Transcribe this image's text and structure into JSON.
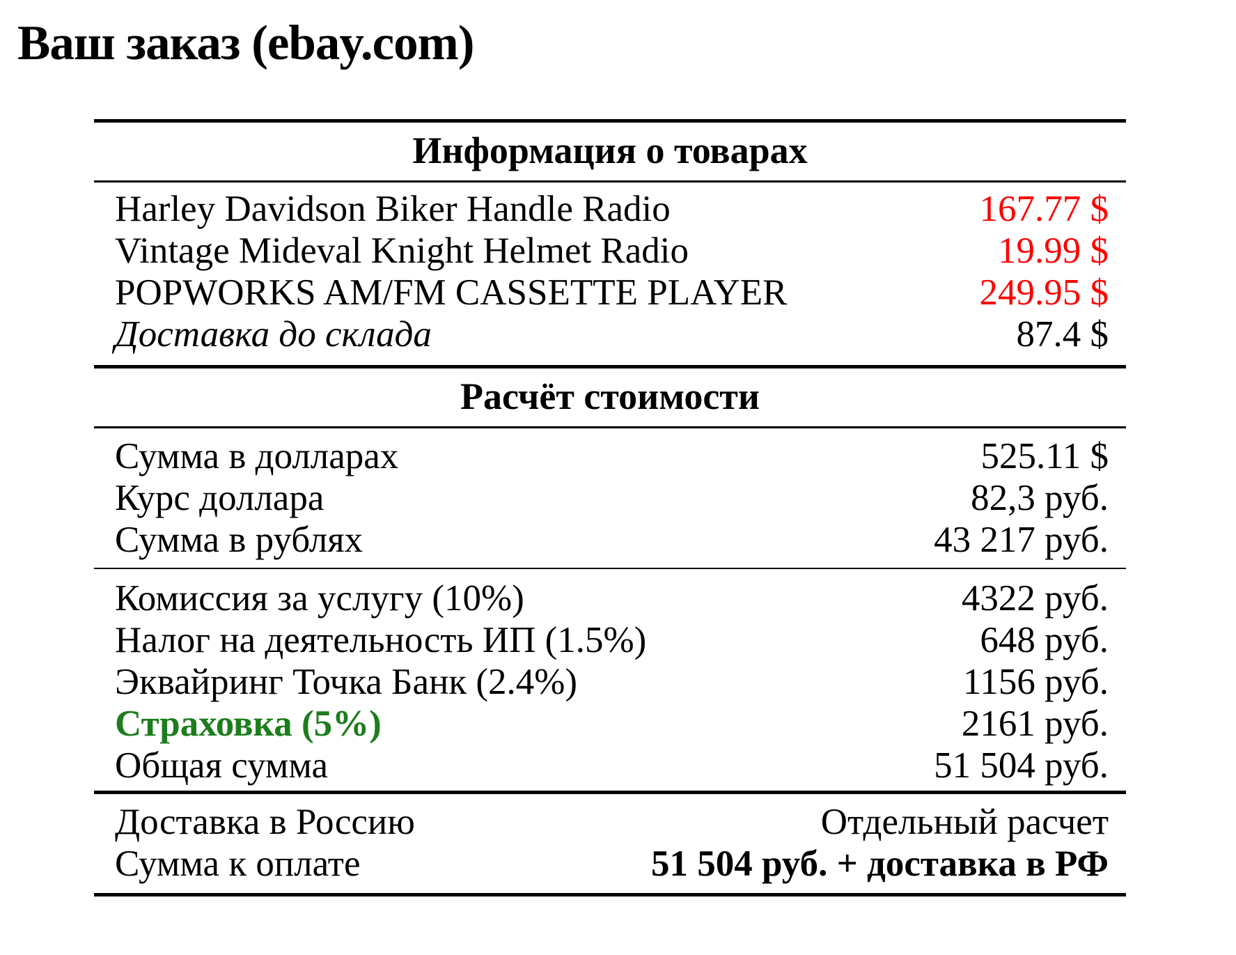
{
  "page": {
    "title": "Ваш заказ (ebay.com)"
  },
  "colors": {
    "price_red": "#ff0000",
    "insurance_green": "#1d7d1d",
    "text": "#000000",
    "background": "#ffffff"
  },
  "table": {
    "products": {
      "header": "Информация о товарах",
      "rows": [
        {
          "label": "Harley Davidson Biker Handle Radio",
          "value": "167.77 $"
        },
        {
          "label": "Vintage Mideval Knight Helmet Radio",
          "value": "19.99 $"
        },
        {
          "label": "POPWORKS AM/FM CASSETTE PLAYER",
          "value": "249.95 $"
        },
        {
          "label": "Доставка до склада",
          "value": "87.4 $"
        }
      ]
    },
    "calculation": {
      "header": "Расчёт стоимости",
      "subtotal_rows": [
        {
          "label": "Сумма в долларах",
          "value": "525.11 $"
        },
        {
          "label": "Курс доллара",
          "value": "82,3 руб."
        },
        {
          "label": "Сумма в рублях",
          "value": "43 217 руб."
        }
      ],
      "fee_rows": [
        {
          "label": "Комиссия за услугу (10%)",
          "value": "4322 руб."
        },
        {
          "label": "Налог на деятельность ИП (1.5%)",
          "value": "648 руб."
        },
        {
          "label": "Эквайринг Точка Банк (2.4%)",
          "value": "1156 руб."
        },
        {
          "label": "Страховка (5%)",
          "value": "2161 руб."
        },
        {
          "label": "Общая сумма",
          "value": "51 504 руб."
        }
      ]
    },
    "totals": {
      "rows": [
        {
          "label": "Доставка в Россию",
          "value": "Отдельный расчет"
        },
        {
          "label": "Сумма к оплате",
          "value": "51 504 руб. + доставка в РФ"
        }
      ]
    }
  }
}
